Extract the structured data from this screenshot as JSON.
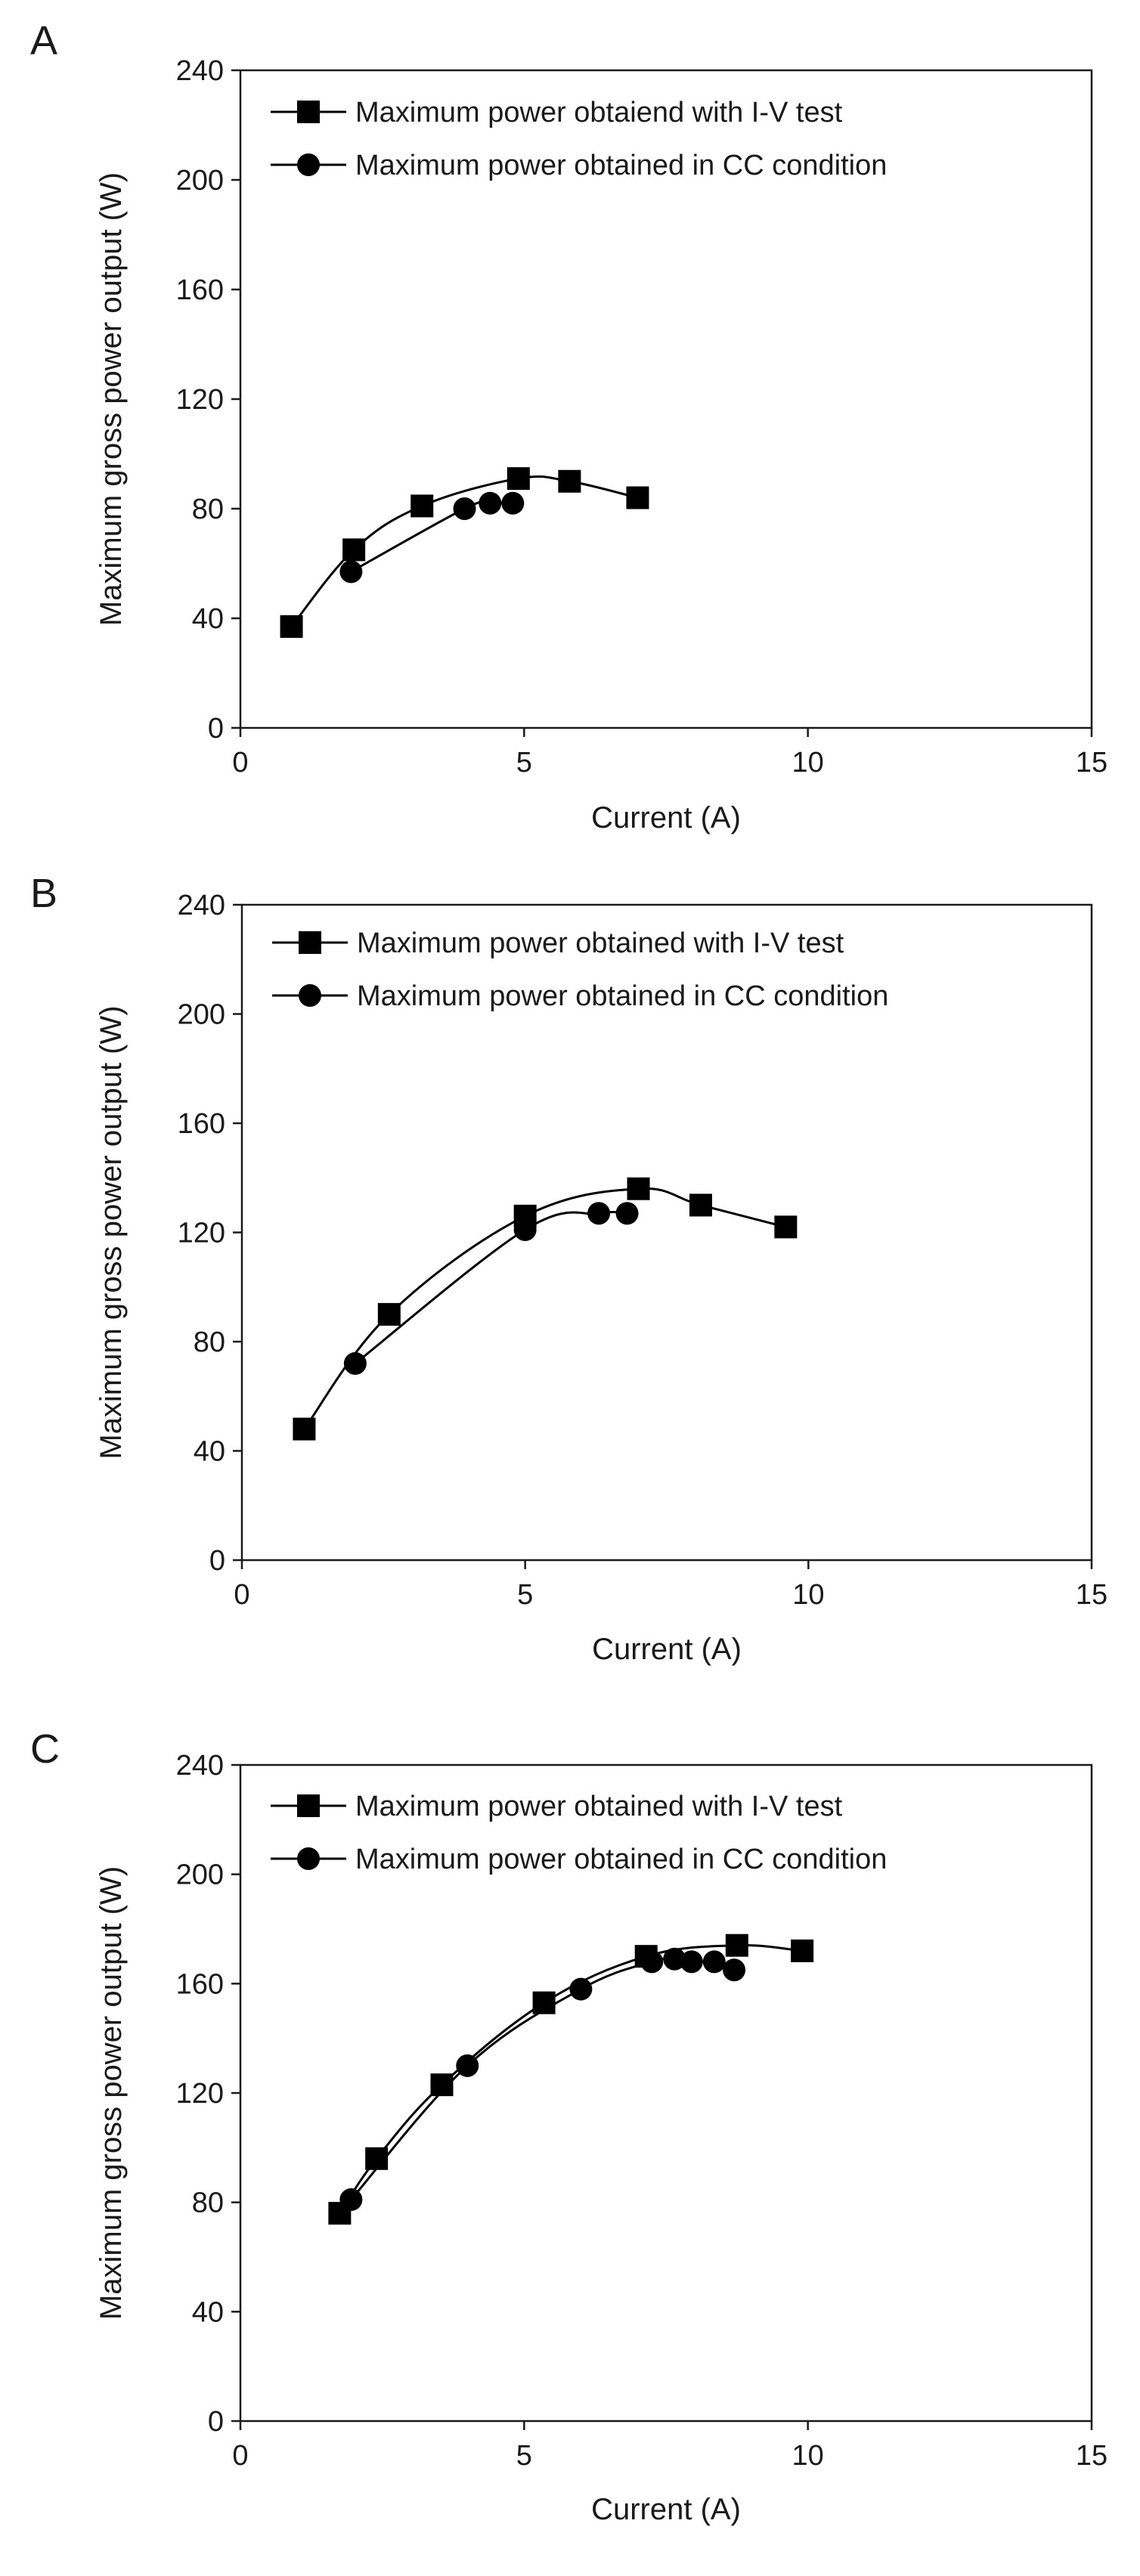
{
  "chart_data": [
    {
      "type": "line",
      "panel_label": "A",
      "xlabel": "Current (A)",
      "ylabel": "Maximum gross power output (W)",
      "xlim": [
        0,
        15
      ],
      "ylim": [
        0,
        240
      ],
      "xticks": [
        0,
        5,
        10,
        15
      ],
      "yticks": [
        0,
        40,
        80,
        120,
        160,
        200,
        240
      ],
      "grid": false,
      "legend_position": "top-left",
      "series": [
        {
          "name": "Maximum power obtaiend with I-V test",
          "marker": "square",
          "x": [
            0.9,
            2.0,
            3.2,
            4.9,
            5.8,
            7.0
          ],
          "y": [
            37,
            65,
            81,
            91,
            90,
            84
          ]
        },
        {
          "name": "Maximum power obtained in CC condition",
          "marker": "circle",
          "x": [
            1.95,
            3.95,
            4.4,
            4.8
          ],
          "y": [
            57,
            80,
            82,
            82
          ]
        }
      ]
    },
    {
      "type": "line",
      "panel_label": "B",
      "xlabel": "Current (A)",
      "ylabel": "Maximum gross power output (W)",
      "xlim": [
        0,
        15
      ],
      "ylim": [
        0,
        240
      ],
      "xticks": [
        0,
        5,
        10,
        15
      ],
      "yticks": [
        0,
        40,
        80,
        120,
        160,
        200,
        240
      ],
      "grid": false,
      "legend_position": "top-left",
      "series": [
        {
          "name": "Maximum power obtained with I-V test",
          "marker": "square",
          "x": [
            1.1,
            2.6,
            5.0,
            7.0,
            8.1,
            9.6
          ],
          "y": [
            48,
            90,
            126,
            136,
            130,
            122
          ]
        },
        {
          "name": "Maximum power obtained in CC condition",
          "marker": "circle",
          "x": [
            2.0,
            5.0,
            6.3,
            6.8
          ],
          "y": [
            72,
            121,
            127,
            127
          ]
        }
      ]
    },
    {
      "type": "line",
      "panel_label": "C",
      "xlabel": "Current (A)",
      "ylabel": "Maximum gross power output (W)",
      "xlim": [
        0,
        15
      ],
      "ylim": [
        0,
        240
      ],
      "xticks": [
        0,
        5,
        10,
        15
      ],
      "yticks": [
        0,
        40,
        80,
        120,
        160,
        200,
        240
      ],
      "grid": false,
      "legend_position": "top-left",
      "series": [
        {
          "name": "Maximum power obtained with I-V test",
          "marker": "square",
          "x": [
            1.75,
            2.4,
            3.55,
            5.35,
            7.15,
            8.75,
            9.9
          ],
          "y": [
            76,
            96,
            123,
            153,
            170,
            174,
            172
          ]
        },
        {
          "name": "Maximum power obtained in CC condition",
          "marker": "circle",
          "x": [
            1.95,
            4.0,
            6.0,
            7.25,
            7.65,
            7.95,
            8.35,
            8.7
          ],
          "y": [
            81,
            130,
            158,
            168,
            169,
            168,
            168,
            165
          ]
        }
      ]
    }
  ]
}
